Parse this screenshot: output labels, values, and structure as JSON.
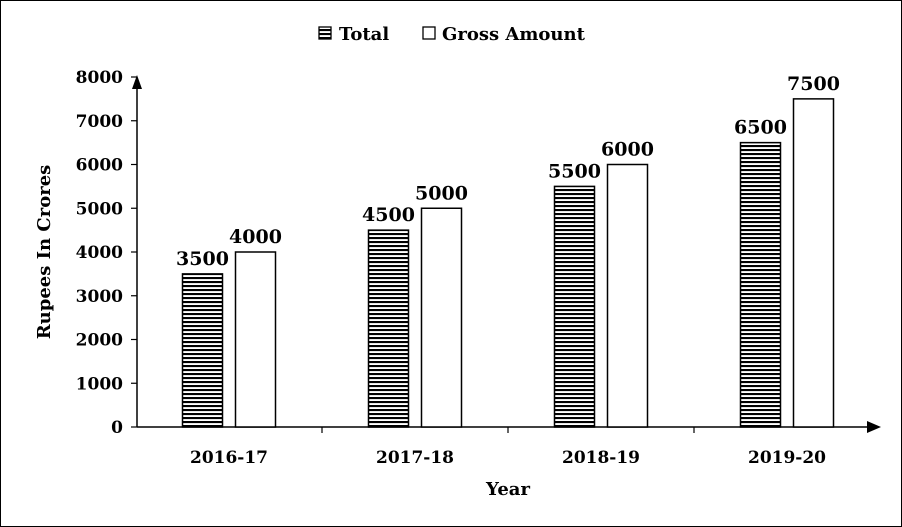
{
  "chart_data": {
    "type": "bar",
    "categories": [
      "2016-17",
      "2017-18",
      "2018-19",
      "2019-20"
    ],
    "series": [
      {
        "name": "Total",
        "values": [
          3500,
          4500,
          5500,
          6500
        ],
        "pattern": "horizontal-stripes",
        "color": "#000000"
      },
      {
        "name": "Gross Amount",
        "values": [
          4000,
          5000,
          6000,
          7500
        ],
        "pattern": "none",
        "color": "#ffffff"
      }
    ],
    "xlabel": "Year",
    "ylabel": "Rupees In Crores",
    "ylim": [
      0,
      8000
    ],
    "yticks": [
      0,
      1000,
      2000,
      3000,
      4000,
      5000,
      6000,
      7000,
      8000
    ],
    "grid": false,
    "legend_position": "top-center",
    "data_labels": true
  }
}
